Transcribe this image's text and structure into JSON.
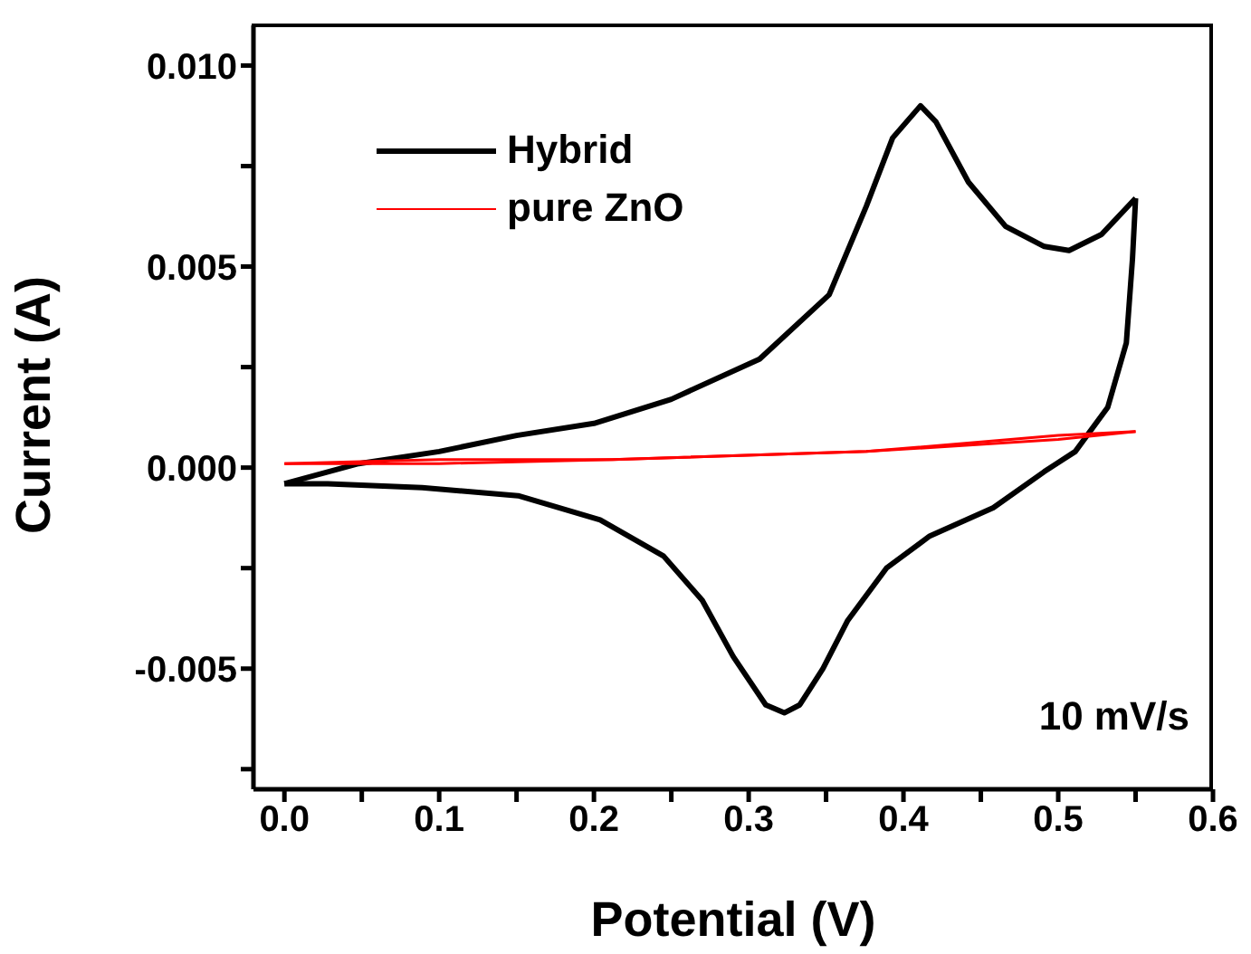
{
  "chart_data": {
    "type": "line",
    "xlabel": "Potential (V)",
    "ylabel": "Current (A)",
    "xlim": [
      -0.02,
      0.6
    ],
    "ylim": [
      -0.008,
      0.011
    ],
    "xticks": [
      {
        "value": 0.0,
        "label": "0.0"
      },
      {
        "value": 0.05,
        "label": null
      },
      {
        "value": 0.1,
        "label": "0.1"
      },
      {
        "value": 0.15,
        "label": null
      },
      {
        "value": 0.2,
        "label": "0.2"
      },
      {
        "value": 0.25,
        "label": null
      },
      {
        "value": 0.3,
        "label": "0.3"
      },
      {
        "value": 0.35,
        "label": null
      },
      {
        "value": 0.4,
        "label": "0.4"
      },
      {
        "value": 0.45,
        "label": null
      },
      {
        "value": 0.5,
        "label": "0.5"
      },
      {
        "value": 0.55,
        "label": null
      },
      {
        "value": 0.6,
        "label": "0.6"
      }
    ],
    "yticks": [
      {
        "value": -0.0075,
        "label": null
      },
      {
        "value": -0.005,
        "label": "-0.005"
      },
      {
        "value": -0.0025,
        "label": null
      },
      {
        "value": 0.0,
        "label": "0.000"
      },
      {
        "value": 0.0025,
        "label": null
      },
      {
        "value": 0.005,
        "label": "0.005"
      },
      {
        "value": 0.0075,
        "label": null
      },
      {
        "value": 0.01,
        "label": "0.010"
      }
    ],
    "grid": false,
    "legend": "top left",
    "marker": "none",
    "line_style": "solid",
    "annotations": [
      "10 mV/s"
    ],
    "series": [
      {
        "name": "Hybrid",
        "color": "#000000",
        "x": [
          0.0,
          0.048,
          0.1,
          0.15,
          0.2,
          0.25,
          0.307,
          0.352,
          0.376,
          0.393,
          0.411,
          0.421,
          0.442,
          0.466,
          0.491,
          0.507,
          0.528,
          0.55
        ],
        "values": [
          -0.0004,
          0.0001,
          0.0004,
          0.0008,
          0.0011,
          0.0017,
          0.0027,
          0.0043,
          0.0065,
          0.0082,
          0.009,
          0.0086,
          0.0071,
          0.006,
          0.0055,
          0.0054,
          0.0058,
          0.0067
        ]
      },
      {
        "color": "#000000",
        "x": [
          0.55,
          0.548,
          0.544,
          0.532,
          0.511,
          0.491,
          0.458,
          0.417,
          0.389,
          0.364,
          0.348,
          0.333,
          0.323,
          0.311,
          0.29,
          0.27,
          0.245,
          0.204,
          0.151,
          0.089,
          0.028,
          0.0
        ],
        "values": [
          0.0067,
          0.0052,
          0.0031,
          0.0015,
          0.0004,
          -0.0001,
          -0.001,
          -0.0017,
          -0.0025,
          -0.0038,
          -0.005,
          -0.0059,
          -0.0061,
          -0.0059,
          -0.0047,
          -0.0033,
          -0.0022,
          -0.0013,
          -0.0007,
          -0.0005,
          -0.0004,
          -0.0004
        ]
      },
      {
        "name": "pure ZnO",
        "color": "#ff0000",
        "x": [
          0.0,
          0.1,
          0.212,
          0.376,
          0.5,
          0.55
        ],
        "values": [
          0.0001,
          0.0002,
          0.0002,
          0.0004,
          0.0008,
          0.0009
        ]
      },
      {
        "color": "#ff0000",
        "x": [
          0.55,
          0.5,
          0.376,
          0.212,
          0.1,
          0.0
        ],
        "values": [
          0.0009,
          0.0007,
          0.0004,
          0.0002,
          0.0001,
          0.0001
        ]
      }
    ]
  }
}
